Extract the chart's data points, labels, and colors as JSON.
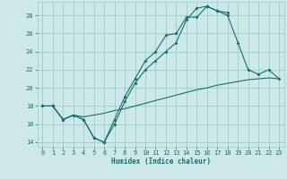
{
  "xlabel": "Humidex (Indice chaleur)",
  "bg_color": "#cce8e8",
  "grid_color": "#99cccc",
  "line_color": "#1a6e6e",
  "xlim": [
    -0.5,
    23.5
  ],
  "ylim": [
    13.5,
    29.5
  ],
  "xticks": [
    0,
    1,
    2,
    3,
    4,
    5,
    6,
    7,
    8,
    9,
    10,
    11,
    12,
    13,
    14,
    15,
    16,
    17,
    18,
    19,
    20,
    21,
    22,
    23
  ],
  "yticks": [
    14,
    16,
    18,
    20,
    22,
    24,
    26,
    28
  ],
  "curve1_x": [
    0,
    1,
    2,
    3,
    4,
    5,
    6,
    7,
    8,
    9,
    10,
    11,
    12,
    13,
    14,
    15,
    16,
    17,
    18
  ],
  "curve1_y": [
    18,
    18,
    16.5,
    17,
    16.5,
    14.5,
    14,
    16.5,
    19,
    21,
    23,
    24,
    25.8,
    26,
    27.8,
    27.8,
    29,
    28.5,
    28.3
  ],
  "curve2_x": [
    0,
    1,
    2,
    3,
    4,
    5,
    6,
    7,
    8,
    9,
    10,
    11,
    12,
    13,
    14,
    15,
    16,
    17,
    18,
    19,
    20,
    21,
    22,
    23
  ],
  "curve2_y": [
    18,
    18,
    16.5,
    17,
    16.5,
    14.5,
    14,
    16,
    18.5,
    20.5,
    22,
    23,
    24,
    25,
    27.5,
    28.8,
    29,
    28.5,
    28,
    25,
    22,
    21.5,
    22,
    21
  ],
  "curve3_x": [
    0,
    1,
    2,
    3,
    4,
    5,
    6,
    7,
    8,
    9,
    10,
    11,
    12,
    13,
    14,
    15,
    16,
    17,
    18,
    19,
    20,
    21,
    22,
    23
  ],
  "curve3_y": [
    18,
    18,
    16.5,
    17,
    16.8,
    17.0,
    17.2,
    17.5,
    17.7,
    18.0,
    18.3,
    18.6,
    18.9,
    19.2,
    19.5,
    19.8,
    20.0,
    20.3,
    20.5,
    20.7,
    20.9,
    21.0,
    21.1,
    21.0
  ]
}
